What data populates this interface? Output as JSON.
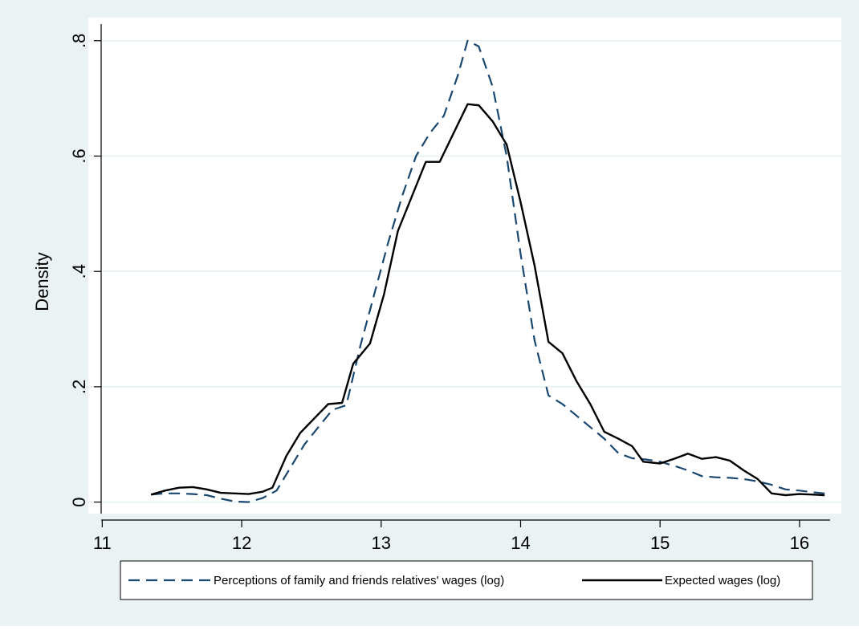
{
  "colors": {
    "outer_background": "#eaf2f3",
    "plot_background": "#ffffff",
    "grid": "#eaf2f3",
    "series_dashed": "#1a476f",
    "series_solid": "#000000"
  },
  "chart_data": {
    "type": "line",
    "title": "",
    "xlabel": "",
    "ylabel": "Density",
    "xlim": [
      10.9,
      16.3
    ],
    "ylim": [
      -0.02,
      0.84
    ],
    "x_ticks": [
      11,
      12,
      13,
      14,
      15,
      16
    ],
    "x_tick_labels": [
      "11",
      "12",
      "13",
      "14",
      "15",
      "16"
    ],
    "y_ticks": [
      0,
      0.2,
      0.4,
      0.6,
      0.8
    ],
    "y_tick_labels": [
      "0",
      ".2",
      ".4",
      ".6",
      ".8"
    ],
    "grid": true,
    "legend_position": "bottom",
    "series": [
      {
        "name": "Perceptions of family and friends relatives' wages (log)",
        "style": "dashed",
        "color": "#1a476f",
        "x": [
          11.35,
          11.45,
          11.55,
          11.65,
          11.75,
          11.85,
          11.95,
          12.05,
          12.15,
          12.25,
          12.35,
          12.45,
          12.55,
          12.65,
          12.75,
          12.85,
          12.95,
          13.05,
          13.15,
          13.25,
          13.35,
          13.45,
          13.55,
          13.62,
          13.7,
          13.8,
          13.9,
          14.0,
          14.1,
          14.2,
          14.3,
          14.4,
          14.5,
          14.6,
          14.7,
          14.8,
          14.9,
          15.0,
          15.1,
          15.2,
          15.3,
          15.4,
          15.5,
          15.6,
          15.7,
          15.8,
          15.9,
          16.0,
          16.1,
          16.18
        ],
        "y": [
          0.013,
          0.015,
          0.015,
          0.014,
          0.012,
          0.006,
          0.001,
          0.0,
          0.007,
          0.02,
          0.06,
          0.1,
          0.13,
          0.16,
          0.168,
          0.27,
          0.36,
          0.45,
          0.53,
          0.6,
          0.64,
          0.67,
          0.74,
          0.8,
          0.79,
          0.72,
          0.6,
          0.43,
          0.28,
          0.185,
          0.17,
          0.15,
          0.13,
          0.11,
          0.085,
          0.076,
          0.074,
          0.07,
          0.063,
          0.055,
          0.045,
          0.043,
          0.042,
          0.04,
          0.036,
          0.03,
          0.022,
          0.02,
          0.017,
          0.015
        ]
      },
      {
        "name": "Expected wages (log)",
        "style": "solid",
        "color": "#000000",
        "x": [
          11.35,
          11.45,
          11.55,
          11.65,
          11.75,
          11.85,
          11.95,
          12.05,
          12.15,
          12.22,
          12.32,
          12.42,
          12.52,
          12.62,
          12.72,
          12.8,
          12.92,
          13.02,
          13.12,
          13.22,
          13.32,
          13.42,
          13.52,
          13.62,
          13.7,
          13.8,
          13.9,
          14.0,
          14.1,
          14.2,
          14.3,
          14.4,
          14.5,
          14.6,
          14.7,
          14.8,
          14.88,
          15.0,
          15.1,
          15.2,
          15.3,
          15.4,
          15.5,
          15.6,
          15.7,
          15.8,
          15.9,
          16.0,
          16.1,
          16.18
        ],
        "y": [
          0.013,
          0.02,
          0.025,
          0.026,
          0.022,
          0.016,
          0.015,
          0.014,
          0.018,
          0.025,
          0.08,
          0.12,
          0.145,
          0.17,
          0.172,
          0.24,
          0.275,
          0.36,
          0.47,
          0.53,
          0.59,
          0.59,
          0.64,
          0.69,
          0.688,
          0.66,
          0.62,
          0.52,
          0.41,
          0.278,
          0.258,
          0.21,
          0.17,
          0.122,
          0.11,
          0.097,
          0.07,
          0.067,
          0.075,
          0.084,
          0.075,
          0.078,
          0.072,
          0.055,
          0.04,
          0.015,
          0.012,
          0.014,
          0.013,
          0.012
        ]
      }
    ]
  }
}
